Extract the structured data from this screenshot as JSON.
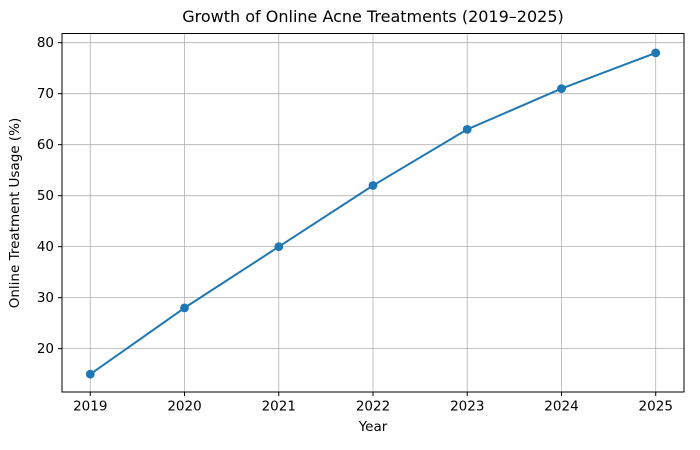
{
  "chart_data": {
    "type": "line",
    "title": "Growth of Online Acne Treatments (2019–2025)",
    "xlabel": "Year",
    "ylabel": "Online Treatment Usage (%)",
    "x": [
      2019,
      2020,
      2021,
      2022,
      2023,
      2024,
      2025
    ],
    "values": [
      15,
      28,
      40,
      52,
      63,
      71,
      78
    ],
    "series": [
      {
        "name": "Online Treatment Usage (%)",
        "values": [
          15,
          28,
          40,
          52,
          63,
          71,
          78
        ]
      }
    ],
    "xticks": [
      2019,
      2020,
      2021,
      2022,
      2023,
      2024,
      2025
    ],
    "yticks": [
      20,
      30,
      40,
      50,
      60,
      70,
      80
    ],
    "xlim": [
      2018.7,
      2025.3
    ],
    "ylim": [
      11.5,
      81.8
    ],
    "grid": true,
    "legend_position": "none",
    "line_color": "#1f77b4",
    "marker": "circle",
    "marker_color": "#1f77b4",
    "grid_color": "#b0b0b0",
    "spine_color": "#000000",
    "text_color": "#000000",
    "background_color": "#ffffff"
  }
}
